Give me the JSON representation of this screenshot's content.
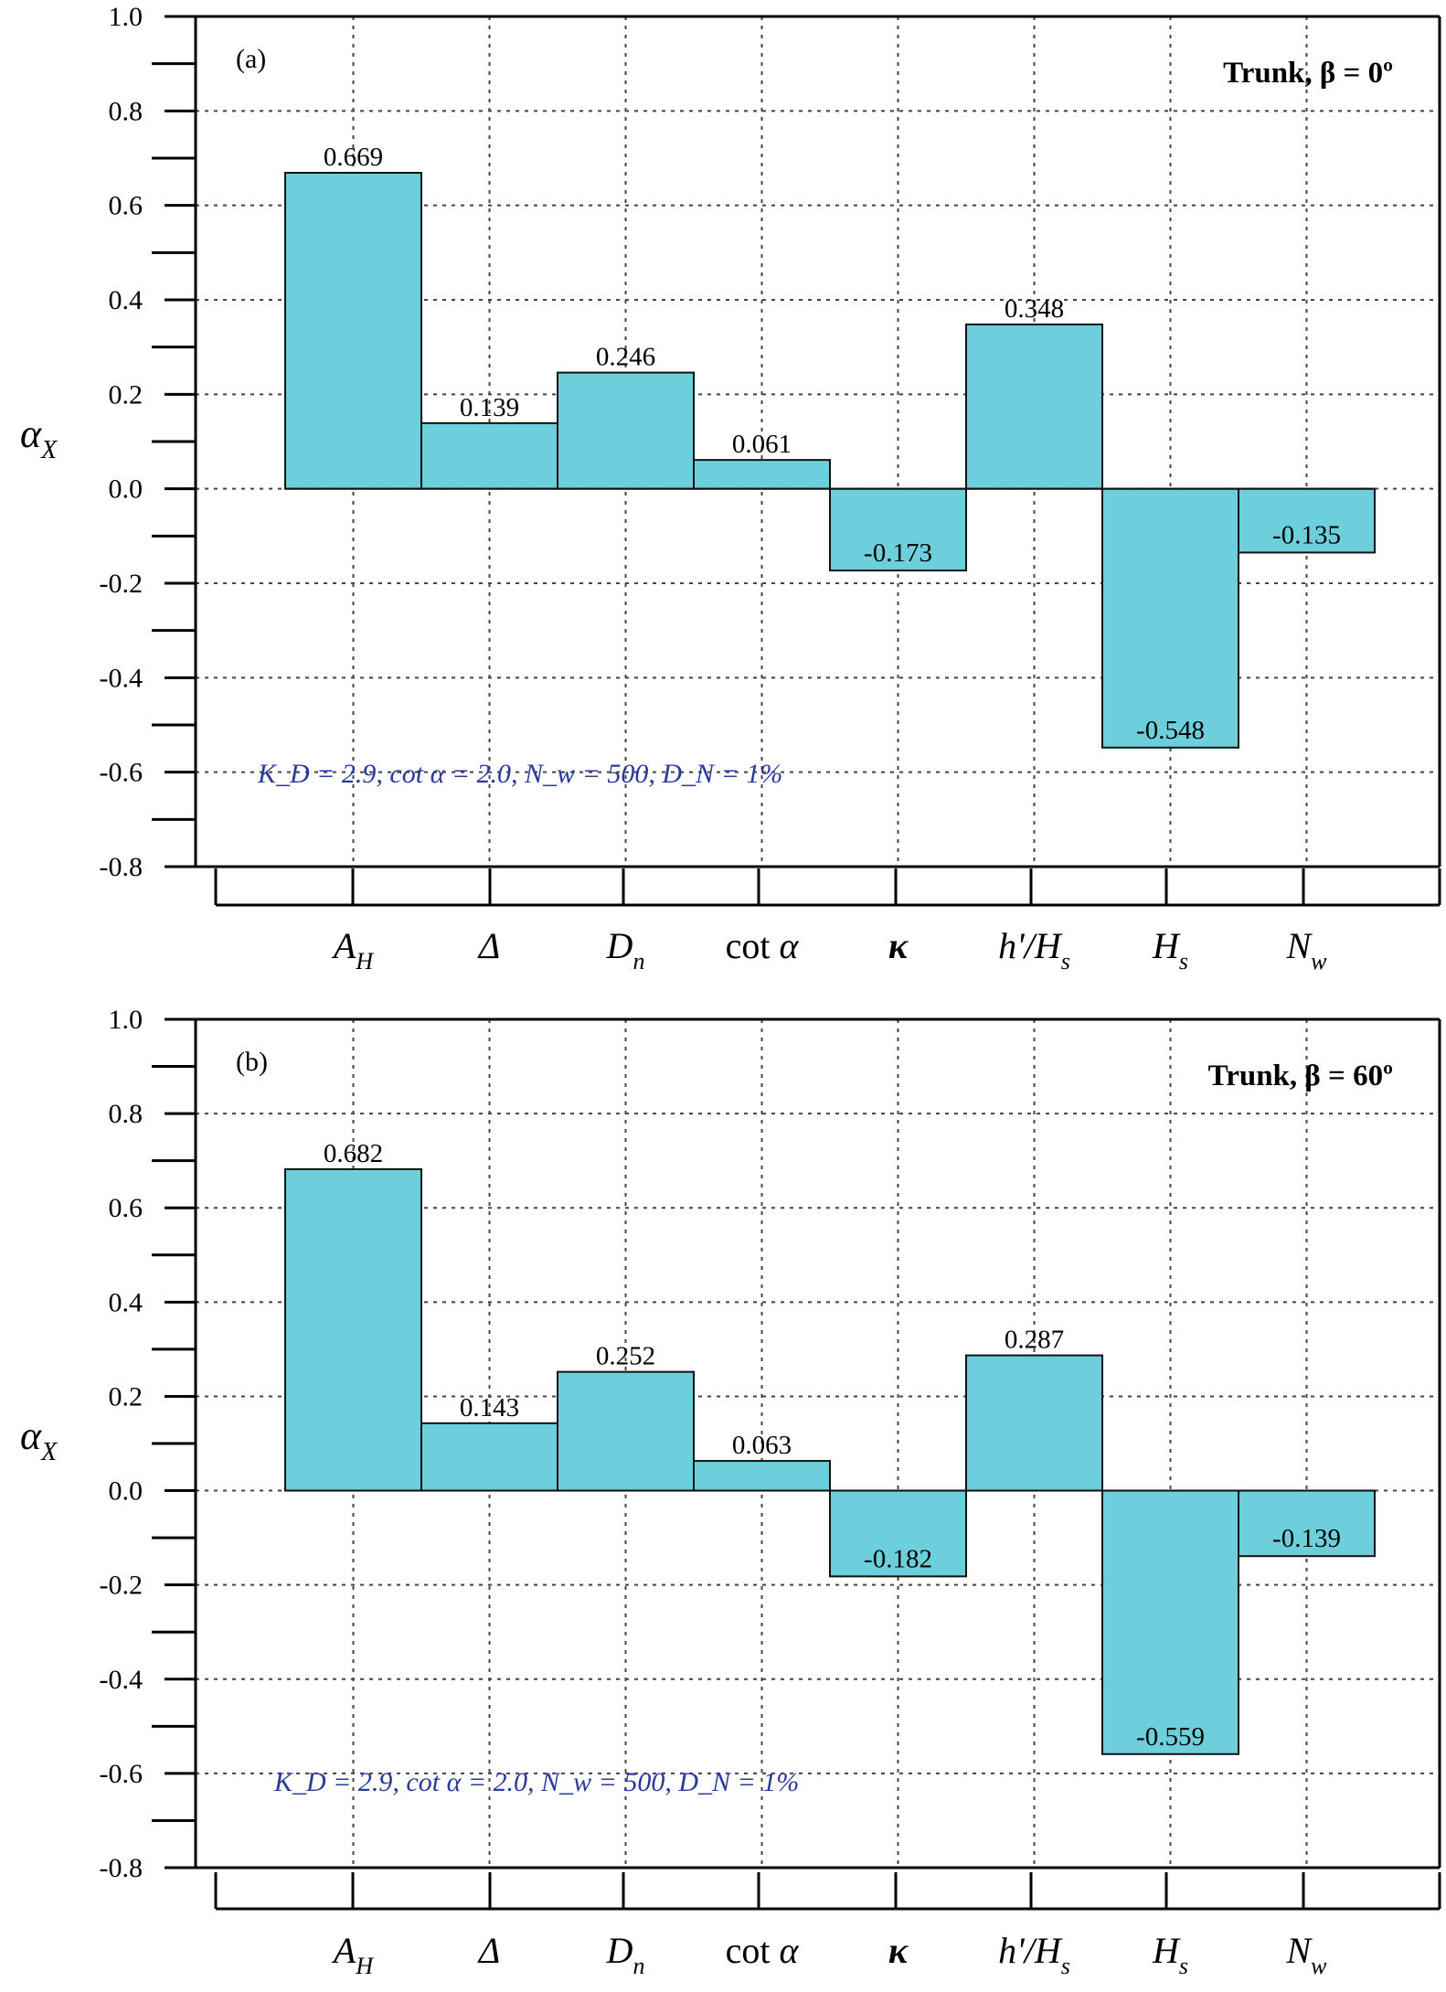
{
  "chart_data": [
    {
      "type": "bar",
      "panel_label": "(a)",
      "title": "Trunk, β = 0º",
      "annotation": "K_D = 2.9,  cot α = 2.0,  N_w = 500,  D_N = 1%",
      "ylabel": "α_X",
      "categories": [
        "A_H",
        "Δ",
        "D_n",
        "cot α",
        "κ",
        "h'/H_s",
        "H_s",
        "N_w"
      ],
      "values": [
        0.669,
        0.139,
        0.246,
        0.061,
        -0.173,
        0.348,
        -0.548,
        -0.135
      ],
      "value_labels": [
        "0.669",
        "0.139",
        "0.246",
        "0.061",
        "-0.173",
        "0.348",
        "-0.548",
        "-0.135"
      ],
      "yticks": [
        "1.0",
        "0.8",
        "0.6",
        "0.4",
        "0.2",
        "0.0",
        "-0.2",
        "-0.4",
        "-0.6",
        "-0.8"
      ],
      "ylim": [
        -0.8,
        1.0
      ],
      "grid": true,
      "bar_color": "#6ecfdc"
    },
    {
      "type": "bar",
      "panel_label": "(b)",
      "title": "Trunk, β = 60º",
      "annotation": "K_D = 2.9,  cot α = 2.0,  N_w = 500,  D_N = 1%",
      "ylabel": "α_X",
      "categories": [
        "A_H",
        "Δ",
        "D_n",
        "cot α",
        "κ",
        "h'/H_s",
        "H_s",
        "N_w"
      ],
      "values": [
        0.682,
        0.143,
        0.252,
        0.063,
        -0.182,
        0.287,
        -0.559,
        -0.139
      ],
      "value_labels": [
        "0.682",
        "0.143",
        "0.252",
        "0.063",
        "-0.182",
        "0.287",
        "-0.559",
        "-0.139"
      ],
      "yticks": [
        "1.0",
        "0.8",
        "0.6",
        "0.4",
        "0.2",
        "0.0",
        "-0.2",
        "-0.4",
        "-0.6",
        "-0.8"
      ],
      "ylim": [
        -0.8,
        1.0
      ],
      "grid": true,
      "bar_color": "#6ecfdc"
    }
  ]
}
